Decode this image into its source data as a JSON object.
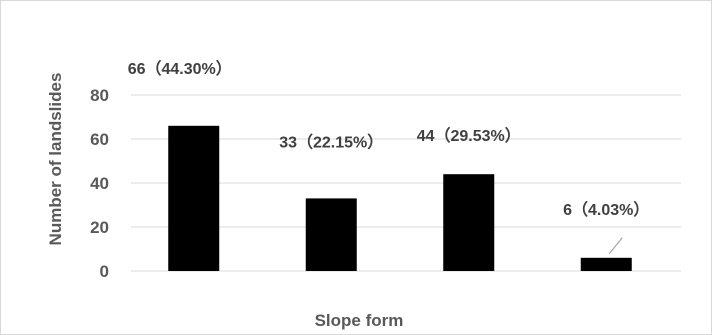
{
  "chart_data": {
    "type": "bar",
    "title": "",
    "xlabel": "Slope form",
    "ylabel": "Number of landslides",
    "categories": [
      "",
      "",
      "",
      ""
    ],
    "values": [
      66,
      33,
      44,
      6
    ],
    "data_labels": [
      "66（44.30%）",
      "33（22.15%）",
      "44（29.53%）",
      "6（4.03%）"
    ],
    "yticks": [
      0,
      20,
      40,
      60,
      80
    ],
    "ylim": [
      0,
      80
    ],
    "grid": true,
    "legend": "none",
    "colors": {
      "bar": "#000000",
      "grid": "#d9d9d9",
      "text": "#595959"
    }
  }
}
